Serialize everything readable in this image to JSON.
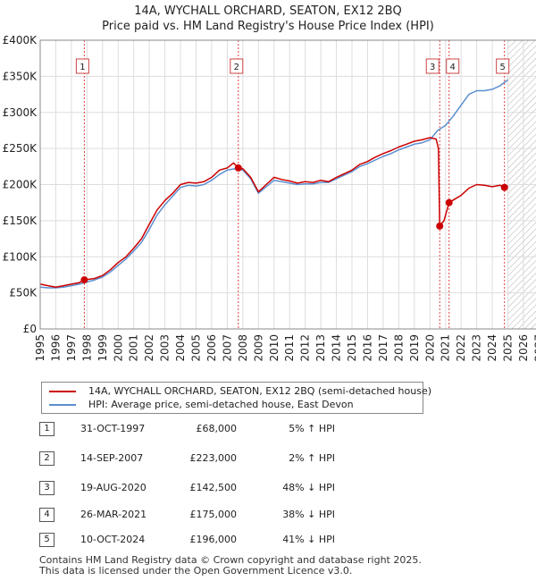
{
  "chart_data": {
    "type": "line",
    "title": "14A, WYCHALL ORCHARD, SEATON, EX12 2BQ",
    "subtitle": "Price paid vs. HM Land Registry's House Price Index (HPI)",
    "xlim": [
      1995,
      2027
    ],
    "ylim": [
      0,
      400000
    ],
    "x_ticks": [
      1995,
      1996,
      1997,
      1998,
      1999,
      2000,
      2001,
      2002,
      2003,
      2004,
      2005,
      2006,
      2007,
      2008,
      2009,
      2010,
      2011,
      2012,
      2013,
      2014,
      2015,
      2016,
      2017,
      2018,
      2019,
      2020,
      2021,
      2022,
      2023,
      2024,
      2025,
      2026,
      2027
    ],
    "y_ticks": [
      {
        "value": 0,
        "label": "£0"
      },
      {
        "value": 50000,
        "label": "£50K"
      },
      {
        "value": 100000,
        "label": "£100K"
      },
      {
        "value": 150000,
        "label": "£150K"
      },
      {
        "value": 200000,
        "label": "£200K"
      },
      {
        "value": 250000,
        "label": "£250K"
      },
      {
        "value": 300000,
        "label": "£300K"
      },
      {
        "value": 350000,
        "label": "£350K"
      },
      {
        "value": 400000,
        "label": "£400K"
      }
    ],
    "grid": true,
    "forecast_start": 2025.0,
    "series": [
      {
        "name": "14A, WYCHALL ORCHARD, SEATON, EX12 2BQ (semi-detached house)",
        "color": "#cc0000",
        "x": [
          1995.0,
          1995.5,
          1996.0,
          1996.5,
          1997.0,
          1997.5,
          1997.83,
          1998.5,
          1999.0,
          1999.5,
          2000.0,
          2000.5,
          2001.0,
          2001.5,
          2002.0,
          2002.5,
          2003.0,
          2003.5,
          2004.0,
          2004.5,
          2005.0,
          2005.5,
          2006.0,
          2006.5,
          2007.0,
          2007.4,
          2007.71,
          2008.0,
          2008.5,
          2009.0,
          2009.5,
          2010.0,
          2010.5,
          2011.0,
          2011.5,
          2012.0,
          2012.5,
          2013.0,
          2013.5,
          2014.0,
          2014.5,
          2015.0,
          2015.5,
          2016.0,
          2016.5,
          2017.0,
          2017.5,
          2018.0,
          2018.5,
          2019.0,
          2019.5,
          2020.0,
          2020.4,
          2020.55,
          2020.63,
          2020.9,
          2021.23,
          2021.6,
          2022.0,
          2022.5,
          2023.0,
          2023.5,
          2024.0,
          2024.5,
          2024.78,
          2025.0
        ],
        "y": [
          62000,
          60000,
          58000,
          60000,
          62000,
          64000,
          68000,
          70000,
          74000,
          82000,
          92000,
          100000,
          112000,
          125000,
          145000,
          165000,
          178000,
          188000,
          200000,
          203000,
          202000,
          204000,
          210000,
          220000,
          223000,
          230000,
          223000,
          222000,
          210000,
          190000,
          200000,
          210000,
          207000,
          205000,
          202000,
          204000,
          203000,
          206000,
          204000,
          210000,
          215000,
          220000,
          228000,
          232000,
          238000,
          243000,
          247000,
          252000,
          256000,
          260000,
          262000,
          265000,
          263000,
          250000,
          142500,
          150000,
          175000,
          180000,
          185000,
          195000,
          200000,
          199000,
          197000,
          199000,
          196000,
          198000
        ]
      },
      {
        "name": "HPI: Average price, semi-detached house, East Devon",
        "color": "#5b8fd0",
        "x": [
          1995.0,
          1995.5,
          1996.0,
          1996.5,
          1997.0,
          1997.5,
          1998.0,
          1998.5,
          1999.0,
          1999.5,
          2000.0,
          2000.5,
          2001.0,
          2001.5,
          2002.0,
          2002.5,
          2003.0,
          2003.5,
          2004.0,
          2004.5,
          2005.0,
          2005.5,
          2006.0,
          2006.5,
          2007.0,
          2007.5,
          2008.0,
          2008.5,
          2009.0,
          2009.5,
          2010.0,
          2010.5,
          2011.0,
          2011.5,
          2012.0,
          2012.5,
          2013.0,
          2013.5,
          2014.0,
          2014.5,
          2015.0,
          2015.5,
          2016.0,
          2016.5,
          2017.0,
          2017.5,
          2018.0,
          2018.5,
          2019.0,
          2019.5,
          2020.0,
          2020.5,
          2021.0,
          2021.5,
          2022.0,
          2022.5,
          2023.0,
          2023.5,
          2024.0,
          2024.5,
          2025.0
        ],
        "y": [
          58000,
          57000,
          57000,
          58000,
          60000,
          62000,
          65000,
          68000,
          72000,
          79000,
          88000,
          97000,
          108000,
          120000,
          138000,
          158000,
          172000,
          184000,
          196000,
          199000,
          198000,
          200000,
          206000,
          214000,
          220000,
          222000,
          220000,
          208000,
          188000,
          197000,
          206000,
          204000,
          202000,
          200000,
          201000,
          201000,
          203000,
          203000,
          208000,
          213000,
          218000,
          225000,
          229000,
          234000,
          239000,
          243000,
          248000,
          252000,
          256000,
          258000,
          262000,
          275000,
          282000,
          295000,
          310000,
          325000,
          330000,
          330000,
          332000,
          337000,
          345000
        ]
      }
    ],
    "sales": [
      {
        "num": "1",
        "date": "31-OCT-1997",
        "price": "£68,000",
        "hpi": "5% ↑ HPI",
        "x": 1997.83,
        "y": 68000
      },
      {
        "num": "2",
        "date": "14-SEP-2007",
        "price": "£223,000",
        "hpi": "2% ↑ HPI",
        "x": 2007.71,
        "y": 223000
      },
      {
        "num": "3",
        "date": "19-AUG-2020",
        "price": "£142,500",
        "hpi": "48% ↓ HPI",
        "x": 2020.63,
        "y": 142500
      },
      {
        "num": "4",
        "date": "26-MAR-2021",
        "price": "£175,000",
        "hpi": "38% ↓ HPI",
        "x": 2021.23,
        "y": 175000
      },
      {
        "num": "5",
        "date": "10-OCT-2024",
        "price": "£196,000",
        "hpi": "41% ↓ HPI",
        "x": 2024.78,
        "y": 196000
      }
    ]
  },
  "legend": {
    "property_label": "14A, WYCHALL ORCHARD, SEATON, EX12 2BQ (semi-detached house)",
    "hpi_label": "HPI: Average price, semi-detached house, East Devon",
    "property_color": "#cc0000",
    "hpi_color": "#5b8fd0"
  },
  "footer": {
    "line1": "Contains HM Land Registry data © Crown copyright and database right 2025.",
    "line2": "This data is licensed under the Open Government Licence v3.0."
  }
}
